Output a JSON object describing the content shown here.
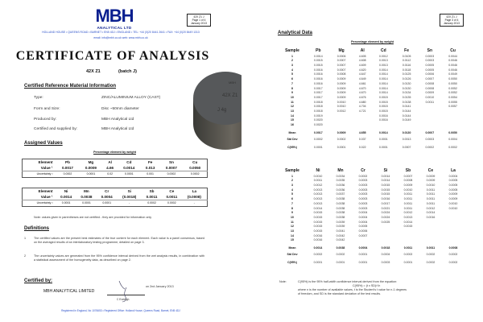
{
  "page1": {
    "logo": {
      "name": "MBH",
      "tagline": "ANALYTICAL LTD"
    },
    "address": "HOLLAND HOUSE • QUEENS ROAD • BARNET • EN5 4DJ • ENGLAND • TEL: +44 (0)20 8441 2641 • FAX: +44 (0)20 8449 1313",
    "contact": "email: info@mbh.co.uk   web: www.mbh.co.uk",
    "page_box": [
      "42X Z1 J",
      "Page 1 of 4",
      "January 2013"
    ],
    "title": "CERTIFICATE OF ANALYSIS",
    "product": "42X Z1",
    "batch": "(batch J)",
    "info_heading": "Certified Reference Material Information",
    "info": [
      {
        "label": "Type:",
        "value": "ZINC/ALUMINIUM ALLOY    (CAST)"
      },
      {
        "label": "Form and Size:",
        "value": "Disc ~50mm diameter"
      },
      {
        "label": "Produced by:",
        "value": "MBH Analytical Ltd"
      },
      {
        "label": "Certified and supplied by:",
        "value": "MBH Analytical Ltd"
      }
    ],
    "photo_engraving": [
      "MBH",
      "42X Z1",
      "J 4g"
    ],
    "assigned_heading": "Assigned Values",
    "caption": "Percentage element by weight",
    "tables": [
      {
        "header": [
          "Element",
          "Pb",
          "Mg",
          "Al",
          "Cd",
          "Fe",
          "Sn",
          "Cu"
        ],
        "value": [
          "Value ¹",
          "0.0017",
          "0.0009",
          "4.66",
          "0.0014",
          "0.013",
          "0.0007",
          "0.0050"
        ],
        "uncertainty": [
          "Uncertainty ²",
          "0.0002",
          "0.0001",
          "0.02",
          "0.0001",
          "0.001",
          "0.0002",
          "0.0002"
        ]
      },
      {
        "header": [
          "Element",
          "Ni",
          "Mn",
          "Cr",
          "Si",
          "Sb",
          "Ce",
          "La"
        ],
        "value": [
          "Value ¹",
          "0.0014",
          "0.0038",
          "0.0004",
          "(0.0018)",
          "0.0011",
          "0.0011",
          "(0.0008)"
        ],
        "uncertainty": [
          "Uncertainty ²",
          "0.0001",
          "0.0001",
          "0.0001",
          "-",
          "0.0002",
          "0.0002",
          "-"
        ]
      }
    ],
    "note": "Note:  values given in parentheses are not certified - they are provided for information only",
    "definitions_heading": "Definitions",
    "definitions": [
      {
        "mark": "1",
        "text": "The certified values are the present best estimates of the true content for each element.  Each value is a panel consensus, based on the averaged results of an interlaboratory testing programme, detailed on page 3."
      },
      {
        "mark": "2",
        "text": "The uncertainty values are generated from the 95% confidence interval derived from the wet analysis results, in combination with a statistical assessment of the homogeneity data, as described on page 2."
      }
    ],
    "certified_heading": "Certified by:",
    "company": "MBH  ANALYTICAL  LIMITED",
    "date": "on 2nd January 2013",
    "signatory": "C Eveleigh",
    "footer": "Registered in England, No 1076653 • Registered Office: Holland House, Queens Road, Barnet, EN5 4DJ"
  },
  "page3": {
    "page_box": [
      "42X Z1 J",
      "Page 3 of 4",
      "January 2013"
    ],
    "heading": "Analytical Data",
    "caption": "Percentage element by weight",
    "tables": [
      {
        "header": [
          "Sample",
          "Pb",
          "Mg",
          "Al",
          "Cd",
          "Fe",
          "Sn",
          "Cu"
        ],
        "rows": [
          [
            "1",
            "0.0014",
            "0.0006",
            "4.605",
            "0.0012",
            "0.0105",
            "0.0003",
            "0.0044"
          ],
          [
            "2",
            "0.0015",
            "0.0007",
            "4.608",
            "0.0013",
            "0.0112",
            "0.0003",
            "0.0046"
          ],
          [
            "3",
            "0.0015",
            "0.0007",
            "4.609",
            "0.0013",
            "0.0116",
            "0.0005",
            "0.0046"
          ],
          [
            "4",
            "0.0016",
            "0.0007",
            "4.620",
            "0.0014",
            "0.0118",
            "0.0005",
            "0.0046"
          ],
          [
            "5",
            "0.0016",
            "0.0008",
            "4.647",
            "0.0014",
            "0.0125",
            "0.0006",
            "0.0049"
          ],
          [
            "6",
            "0.0016",
            "0.0009",
            "4.649",
            "0.0014",
            "0.0126",
            "0.0007",
            "0.0050"
          ],
          [
            "7",
            "0.0016",
            "0.0009",
            "4.661",
            "0.0014",
            "0.0130",
            "0.0008",
            "0.0050"
          ],
          [
            "8",
            "0.0017",
            "0.0009",
            "4.670",
            "0.0014",
            "0.0130",
            "0.0008",
            "0.0052"
          ],
          [
            "9",
            "0.0017",
            "0.0009",
            "4.670",
            "0.0014",
            "0.0134",
            "0.0009",
            "0.0052"
          ],
          [
            "10",
            "0.0017",
            "0.0009",
            "4.676",
            "0.0015",
            "0.0135",
            "0.0010",
            "0.0054"
          ],
          [
            "11",
            "0.0018",
            "0.0010",
            "4.680",
            "0.0015",
            "0.0138",
            "0.0011",
            "0.0055"
          ],
          [
            "12",
            "0.0018",
            "0.0010",
            "4.704",
            "0.0015",
            "0.0141",
            "",
            "0.0057"
          ],
          [
            "13",
            "0.0018",
            "0.0012",
            "4.721",
            "0.0015",
            "0.0144",
            "",
            ""
          ],
          [
            "14",
            "0.0019",
            "",
            "",
            "0.0016",
            "0.0144",
            "",
            ""
          ],
          [
            "15",
            "0.0020",
            "",
            "",
            "0.0016",
            "0.0149",
            "",
            ""
          ],
          [
            "16",
            "0.0020",
            "",
            "",
            "",
            "",
            "",
            ""
          ]
        ],
        "mean": [
          "Mean",
          "0.0017",
          "0.0009",
          "4.655",
          "0.0014",
          "0.0130",
          "0.0007",
          "0.0050"
        ],
        "std_dev": [
          "Std Dev",
          "0.0002",
          "0.0002",
          "0.037",
          "0.0001",
          "0.0013",
          "0.0003",
          "0.0004"
        ],
        "ci": [
          "C(95%)",
          "0.0001",
          "0.0001",
          "0.022",
          "0.0001",
          "0.0007",
          "0.0002",
          "0.0002"
        ]
      },
      {
        "header": [
          "Sample",
          "Ni",
          "Mn",
          "Cr",
          "Si",
          "Sb",
          "Ce",
          "La"
        ],
        "rows": [
          [
            "1",
            "0.0010",
            "0.0034",
            "0.0002",
            "0.0014",
            "0.0007",
            "0.0009",
            "0.0004"
          ],
          [
            "2",
            "0.0011",
            "0.0035",
            "0.0003",
            "0.0014",
            "0.0008",
            "0.0009",
            "0.0005"
          ],
          [
            "3",
            "0.0012",
            "0.0036",
            "0.0003",
            "0.0015",
            "0.0009",
            "0.0010",
            "0.0005"
          ],
          [
            "4",
            "0.0013",
            "0.0036",
            "0.0003",
            "0.0015",
            "0.0010",
            "0.0011",
            "0.0005"
          ],
          [
            "5",
            "0.0013",
            "0.0037",
            "0.0003",
            "0.0015",
            "0.0011",
            "0.0011",
            "0.0009"
          ],
          [
            "6",
            "0.0013",
            "0.0038",
            "0.0003",
            "0.0016",
            "0.0011",
            "0.0011",
            "0.0009"
          ],
          [
            "7",
            "0.0013",
            "0.0038",
            "0.0003",
            "0.0017",
            "0.0011",
            "0.0011",
            "0.0010"
          ],
          [
            "8",
            "0.0014",
            "0.0038",
            "0.0003",
            "0.0021",
            "0.0011",
            "0.0012",
            "0.0010"
          ],
          [
            "9",
            "0.0015",
            "0.0038",
            "0.0004",
            "0.0024",
            "0.0012",
            "0.0014",
            ""
          ],
          [
            "10",
            "0.0015",
            "0.0038",
            "0.0004",
            "0.0024",
            "0.0013",
            "0.0016",
            ""
          ],
          [
            "11",
            "0.0015",
            "0.0039",
            "0.0004",
            "0.0025",
            "0.0014",
            "",
            ""
          ],
          [
            "12",
            "0.0015",
            "0.0039",
            "0.0005",
            "",
            "0.0015",
            "",
            ""
          ],
          [
            "13",
            "0.0015",
            "0.0041",
            "0.0006",
            "",
            "",
            "",
            ""
          ],
          [
            "14",
            "0.0016",
            "0.0042",
            "0.0007",
            "",
            "",
            "",
            ""
          ],
          [
            "15",
            "0.0016",
            "0.0042",
            "",
            "",
            "",
            "",
            ""
          ]
        ],
        "mean": [
          "Mean",
          "0.0014",
          "0.0038",
          "0.0004",
          "0.0018",
          "0.0011",
          "0.0011",
          "0.0008"
        ],
        "std_dev": [
          "Std Dev",
          "0.0002",
          "0.0002",
          "0.0001",
          "0.0004",
          "0.0002",
          "0.0002",
          "0.0002"
        ],
        "ci": [
          "C(95%)",
          "0.0001",
          "0.0001",
          "0.0001",
          "0.0003",
          "0.0001",
          "0.0002",
          "0.0002"
        ]
      }
    ],
    "note_label": "Note:",
    "note_lines": [
      "C(95%) is the 95% half-width confidence interval derived from the equation:",
      "C(95%) = (t x SD)/√n",
      "where n is the number of available values, t is the Student's t value for n-1 degrees",
      "of freedom, and SD is the standard deviation of the test results."
    ]
  }
}
